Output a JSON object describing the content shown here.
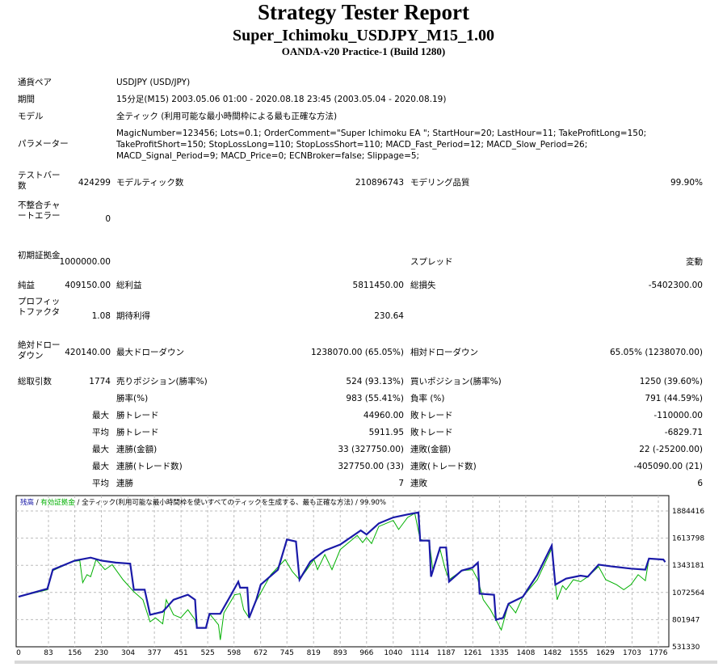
{
  "header": {
    "title": "Strategy Tester Report",
    "subtitle": "Super_Ichimoku_USDJPY_M15_1.00",
    "server": "OANDA-v20 Practice-1 (Build 1280)"
  },
  "info": [
    {
      "label": "通貨ペア",
      "value": "USDJPY (USD/JPY)"
    },
    {
      "label": "期間",
      "value": "15分足(M15) 2003.05.06 01:00 - 2020.08.18 23:45 (2003.05.04 - 2020.08.19)"
    },
    {
      "label": "モデル",
      "value": "全ティック (利用可能な最小時間枠による最も正確な方法)"
    },
    {
      "label": "パラメーター",
      "value": "MagicNumber=123456; Lots=0.1; OrderComment=\"Super Ichimoku EA \"; StartHour=20; LastHour=11; TakeProfitLong=150; TakeProfitShort=150; StopLossLong=110; StopLossShort=110; MACD_Fast_Period=12; MACD_Slow_Period=26; MACD_Signal_Period=9; MACD_Price=0; ECNBroker=false; Slippage=5;"
    }
  ],
  "stats": {
    "bars_label": "テストバー数",
    "bars": "424299",
    "ticks_label": "モデルティック数",
    "ticks": "210896743",
    "quality_label": "モデリング品質",
    "quality": "99.90%",
    "errors_label": "不整合チャートエラー",
    "errors": "0",
    "deposit_label": "初期証拠金",
    "deposit": "1000000.00",
    "spread_label": "スプレッド",
    "spread": "変動",
    "net_label": "純益",
    "net": "409150.00",
    "gross_profit_label": "総利益",
    "gross_profit": "5811450.00",
    "gross_loss_label": "総損失",
    "gross_loss": "-5402300.00",
    "pf_label": "プロフィットファクタ",
    "pf": "1.08",
    "expected_label": "期待利得",
    "expected": "230.64",
    "abs_dd_label": "絶対ドローダウン",
    "abs_dd": "420140.00",
    "max_dd_label": "最大ドローダウン",
    "max_dd": "1238070.00 (65.05%)",
    "rel_dd_label": "相対ドローダウン",
    "rel_dd": "65.05% (1238070.00)",
    "trades_label": "総取引数",
    "trades": "1774",
    "short_label": "売りポジション(勝率%)",
    "short": "524 (93.13%)",
    "long_label": "買いポジション(勝率%)",
    "long": "1250 (39.60%)",
    "win_label": "勝率(%)",
    "win": "983 (55.41%)",
    "loss_label": "負率 (%)",
    "loss": "791 (44.59%)",
    "max_label": "最大",
    "avg_label": "平均",
    "largest_win_label": "勝トレード",
    "largest_win": "44960.00",
    "largest_loss_label": "敗トレード",
    "largest_loss": "-110000.00",
    "avg_win_label": "勝トレード",
    "avg_win": "5911.95",
    "avg_loss_label": "敗トレード",
    "avg_loss": "-6829.71",
    "cons_win_money_label": "連勝(金額)",
    "cons_win_money": "33 (327750.00)",
    "cons_loss_money_label": "連敗(金額)",
    "cons_loss_money": "22 (-25200.00)",
    "cons_win_count_label": "連勝(トレード数)",
    "cons_win_count": "327750.00 (33)",
    "cons_loss_count_label": "連敗(トレード数)",
    "cons_loss_count": "-405090.00 (21)",
    "avg_cons_win_label": "連勝",
    "avg_cons_win": "7",
    "avg_cons_loss_label": "連敗",
    "avg_cons_loss": "6"
  },
  "chart_data": {
    "type": "line",
    "legend": {
      "balance": "残高",
      "equity": "有効証拠金",
      "model": "全ティック(利用可能な最小時間枠を使いすべてのティックを生成する、最も正確な方法)",
      "quality": "99.90%"
    },
    "colors": {
      "balance": "#1a1aa8",
      "equity": "#00b000"
    },
    "xticks": [
      "0",
      "83",
      "156",
      "230",
      "304",
      "377",
      "451",
      "525",
      "598",
      "672",
      "745",
      "819",
      "893",
      "966",
      "1040",
      "1114",
      "1187",
      "1261",
      "1335",
      "1408",
      "1482",
      "1555",
      "1629",
      "1703",
      "1776"
    ],
    "yticks": [
      "1884416",
      "1613798",
      "1343181",
      "1072564",
      "801947",
      "531330"
    ],
    "xlim": [
      0,
      1776
    ],
    "ylim": [
      531330,
      1884416
    ],
    "series": [
      {
        "name": "balance",
        "points": [
          [
            0,
            1030000
          ],
          [
            80,
            1110000
          ],
          [
            95,
            1300000
          ],
          [
            156,
            1390000
          ],
          [
            200,
            1420000
          ],
          [
            230,
            1390000
          ],
          [
            270,
            1370000
          ],
          [
            310,
            1360000
          ],
          [
            320,
            1100000
          ],
          [
            350,
            1100000
          ],
          [
            365,
            850000
          ],
          [
            400,
            880000
          ],
          [
            430,
            1000000
          ],
          [
            470,
            1050000
          ],
          [
            490,
            1000000
          ],
          [
            495,
            720000
          ],
          [
            520,
            720000
          ],
          [
            530,
            860000
          ],
          [
            560,
            860000
          ],
          [
            590,
            1050000
          ],
          [
            610,
            1180000
          ],
          [
            615,
            1120000
          ],
          [
            635,
            1120000
          ],
          [
            640,
            820000
          ],
          [
            660,
            1000000
          ],
          [
            672,
            1150000
          ],
          [
            720,
            1300000
          ],
          [
            745,
            1600000
          ],
          [
            770,
            1580000
          ],
          [
            780,
            1200000
          ],
          [
            810,
            1380000
          ],
          [
            850,
            1490000
          ],
          [
            893,
            1550000
          ],
          [
            950,
            1690000
          ],
          [
            966,
            1650000
          ],
          [
            1000,
            1760000
          ],
          [
            1040,
            1820000
          ],
          [
            1080,
            1850000
          ],
          [
            1110,
            1870000
          ],
          [
            1115,
            1590000
          ],
          [
            1140,
            1590000
          ],
          [
            1145,
            1230000
          ],
          [
            1170,
            1520000
          ],
          [
            1187,
            1520000
          ],
          [
            1195,
            1180000
          ],
          [
            1230,
            1290000
          ],
          [
            1260,
            1320000
          ],
          [
            1275,
            1370000
          ],
          [
            1280,
            1060000
          ],
          [
            1320,
            1050000
          ],
          [
            1325,
            800000
          ],
          [
            1345,
            820000
          ],
          [
            1360,
            960000
          ],
          [
            1400,
            1030000
          ],
          [
            1440,
            1250000
          ],
          [
            1480,
            1540000
          ],
          [
            1490,
            1150000
          ],
          [
            1520,
            1210000
          ],
          [
            1560,
            1240000
          ],
          [
            1580,
            1230000
          ],
          [
            1610,
            1350000
          ],
          [
            1650,
            1330000
          ],
          [
            1700,
            1310000
          ],
          [
            1740,
            1300000
          ],
          [
            1750,
            1410000
          ],
          [
            1790,
            1400000
          ],
          [
            1800,
            1375000
          ]
        ]
      },
      {
        "name": "equity",
        "points": [
          [
            0,
            1030000
          ],
          [
            80,
            1100000
          ],
          [
            95,
            1290000
          ],
          [
            150,
            1380000
          ],
          [
            170,
            1390000
          ],
          [
            178,
            1170000
          ],
          [
            190,
            1250000
          ],
          [
            200,
            1230000
          ],
          [
            215,
            1400000
          ],
          [
            240,
            1300000
          ],
          [
            260,
            1350000
          ],
          [
            290,
            1200000
          ],
          [
            320,
            1080000
          ],
          [
            345,
            1000000
          ],
          [
            365,
            780000
          ],
          [
            380,
            820000
          ],
          [
            400,
            760000
          ],
          [
            410,
            1000000
          ],
          [
            430,
            850000
          ],
          [
            450,
            820000
          ],
          [
            470,
            900000
          ],
          [
            490,
            800000
          ],
          [
            495,
            720000
          ],
          [
            520,
            720000
          ],
          [
            530,
            860000
          ],
          [
            555,
            750000
          ],
          [
            560,
            600000
          ],
          [
            570,
            870000
          ],
          [
            600,
            1050000
          ],
          [
            615,
            1060000
          ],
          [
            625,
            900000
          ],
          [
            640,
            820000
          ],
          [
            660,
            990000
          ],
          [
            700,
            1250000
          ],
          [
            740,
            1400000
          ],
          [
            760,
            1280000
          ],
          [
            780,
            1200000
          ],
          [
            800,
            1300000
          ],
          [
            820,
            1400000
          ],
          [
            830,
            1300000
          ],
          [
            850,
            1450000
          ],
          [
            870,
            1300000
          ],
          [
            893,
            1500000
          ],
          [
            940,
            1640000
          ],
          [
            955,
            1570000
          ],
          [
            966,
            1620000
          ],
          [
            980,
            1560000
          ],
          [
            1000,
            1730000
          ],
          [
            1040,
            1790000
          ],
          [
            1055,
            1700000
          ],
          [
            1080,
            1820000
          ],
          [
            1100,
            1860000
          ],
          [
            1115,
            1600000
          ],
          [
            1140,
            1580000
          ],
          [
            1150,
            1300000
          ],
          [
            1170,
            1500000
          ],
          [
            1185,
            1300000
          ],
          [
            1195,
            1200000
          ],
          [
            1230,
            1290000
          ],
          [
            1260,
            1300000
          ],
          [
            1275,
            1200000
          ],
          [
            1290,
            1000000
          ],
          [
            1310,
            900000
          ],
          [
            1325,
            800000
          ],
          [
            1340,
            700000
          ],
          [
            1360,
            960000
          ],
          [
            1380,
            870000
          ],
          [
            1400,
            1030000
          ],
          [
            1440,
            1200000
          ],
          [
            1480,
            1510000
          ],
          [
            1495,
            1000000
          ],
          [
            1510,
            1140000
          ],
          [
            1520,
            1100000
          ],
          [
            1540,
            1200000
          ],
          [
            1560,
            1180000
          ],
          [
            1580,
            1230000
          ],
          [
            1610,
            1330000
          ],
          [
            1630,
            1200000
          ],
          [
            1660,
            1150000
          ],
          [
            1680,
            1100000
          ],
          [
            1700,
            1150000
          ],
          [
            1720,
            1250000
          ],
          [
            1740,
            1190000
          ],
          [
            1750,
            1410000
          ],
          [
            1790,
            1400000
          ],
          [
            1800,
            1375000
          ]
        ]
      }
    ]
  }
}
